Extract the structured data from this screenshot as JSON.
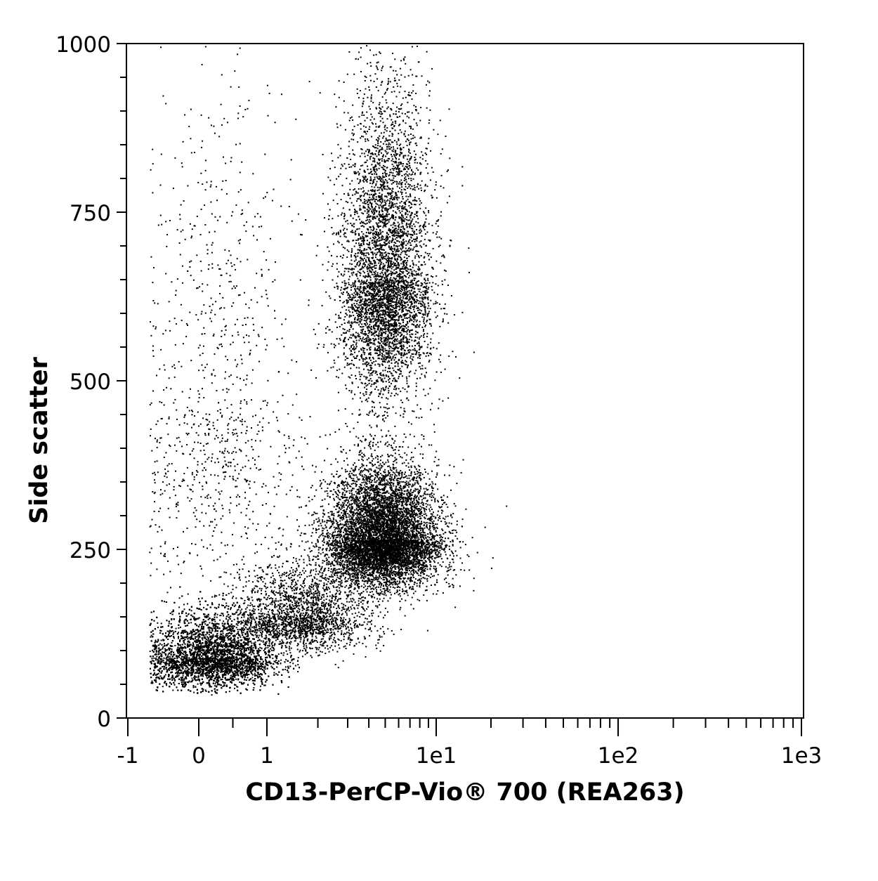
{
  "chart_data": {
    "type": "scatter",
    "title": "",
    "xlabel": "CD13-PerCP-Vio® 700 (REA263)",
    "ylabel": "Side scatter",
    "x_scale": "biexponential",
    "xlim": [
      -1,
      1000
    ],
    "ylim": [
      0,
      1000
    ],
    "x_ticks": [
      {
        "value": -1,
        "label": "-1"
      },
      {
        "value": 0,
        "label": "0"
      },
      {
        "value": 1,
        "label": "1"
      },
      {
        "value": 10,
        "label": "1e1"
      },
      {
        "value": 100,
        "label": "1e2"
      },
      {
        "value": 1000,
        "label": "1e3"
      }
    ],
    "y_ticks": [
      {
        "value": 0,
        "label": "0"
      },
      {
        "value": 250,
        "label": "250"
      },
      {
        "value": 500,
        "label": "500"
      },
      {
        "value": 750,
        "label": "750"
      },
      {
        "value": 1000,
        "label": "1000"
      }
    ],
    "grid": false,
    "legend": "none",
    "point_color": "#000000",
    "populations": [
      {
        "x_center": 0.2,
        "y_center": 90,
        "x_spread": 0.45,
        "y_spread": 35,
        "relative_count": 0.38
      },
      {
        "x_center": 4.8,
        "y_center": 265,
        "x_spread": 2.2,
        "y_spread": 55,
        "relative_count": 0.3
      },
      {
        "x_center": 5.0,
        "y_center": 650,
        "x_spread": 1.8,
        "y_spread": 140,
        "relative_count": 0.2
      },
      {
        "x_center": 1.6,
        "y_center": 150,
        "x_spread": 0.9,
        "y_spread": 40,
        "relative_count": 0.08
      },
      {
        "x_center": 0.3,
        "y_center": 450,
        "x_spread": 0.6,
        "y_spread": 250,
        "relative_count": 0.04
      }
    ]
  }
}
